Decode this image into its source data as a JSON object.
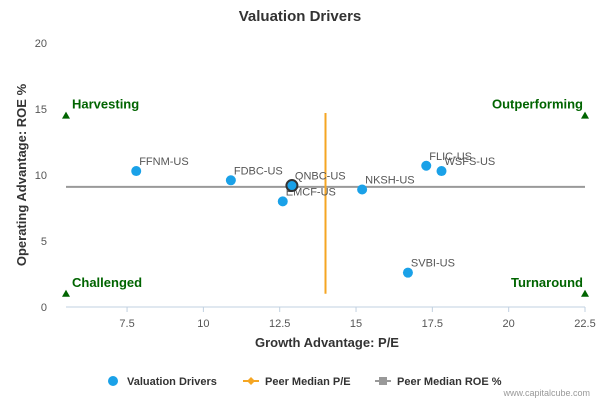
{
  "chart_data": {
    "type": "scatter",
    "title": "Valuation Drivers",
    "xlabel": "Growth Advantage: P/E",
    "ylabel": "Operating Advantage: ROE %",
    "xlim": [
      5.5,
      22.5
    ],
    "ylim": [
      0,
      20
    ],
    "x_ticks": [
      "7.5",
      "10",
      "12.5",
      "15",
      "17.5",
      "20",
      "22.5"
    ],
    "x_tick_values": [
      7.5,
      10,
      12.5,
      15,
      17.5,
      20,
      22.5
    ],
    "y_ticks": [
      "0",
      "5",
      "10",
      "15",
      "20"
    ],
    "y_tick_values": [
      0,
      5,
      10,
      15,
      20
    ],
    "grid": false,
    "legend_position": "bottom",
    "colors": {
      "points": "#1aa1e8",
      "peer_pe": "#f5a623",
      "peer_roe": "#999999",
      "quadrant": "#006400",
      "highlight_ring": "#333333"
    },
    "series": [
      {
        "name": "Valuation Drivers",
        "points": [
          {
            "label": "FFNM-US",
            "x": 7.8,
            "y": 10.3
          },
          {
            "label": "FDBC-US",
            "x": 10.9,
            "y": 9.6
          },
          {
            "label": "EMCF-US",
            "x": 12.6,
            "y": 8.0
          },
          {
            "label": "QNBC-US",
            "x": 12.9,
            "y": 9.2,
            "highlight": true
          },
          {
            "label": "NKSH-US",
            "x": 15.2,
            "y": 8.9
          },
          {
            "label": "FLIC-US",
            "x": 17.3,
            "y": 10.7
          },
          {
            "label": "WSFS-US",
            "x": 17.8,
            "y": 10.3
          },
          {
            "label": "SVBI-US",
            "x": 16.7,
            "y": 2.6
          }
        ]
      },
      {
        "name": "Peer Median P/E",
        "x": 14.0,
        "y_range": [
          1.0,
          14.7
        ]
      },
      {
        "name": "Peer Median ROE %",
        "y": 9.1,
        "x_range": [
          5.5,
          22.5
        ]
      }
    ],
    "quadrants": [
      {
        "label": "Harvesting",
        "x": 5.5,
        "y": 14.5,
        "anchor": "start"
      },
      {
        "label": "Outperforming",
        "x": 22.5,
        "y": 14.5,
        "anchor": "end"
      },
      {
        "label": "Challenged",
        "x": 5.5,
        "y": 1.0,
        "anchor": "start"
      },
      {
        "label": "Turnaround",
        "x": 22.5,
        "y": 1.0,
        "anchor": "end"
      }
    ]
  },
  "legend": [
    {
      "label": "Valuation Drivers",
      "symbol": "dot"
    },
    {
      "label": "Peer Median P/E",
      "symbol": "diamond-line"
    },
    {
      "label": "Peer Median ROE %",
      "symbol": "square-line"
    }
  ],
  "credit": "www.capitalcube.com"
}
